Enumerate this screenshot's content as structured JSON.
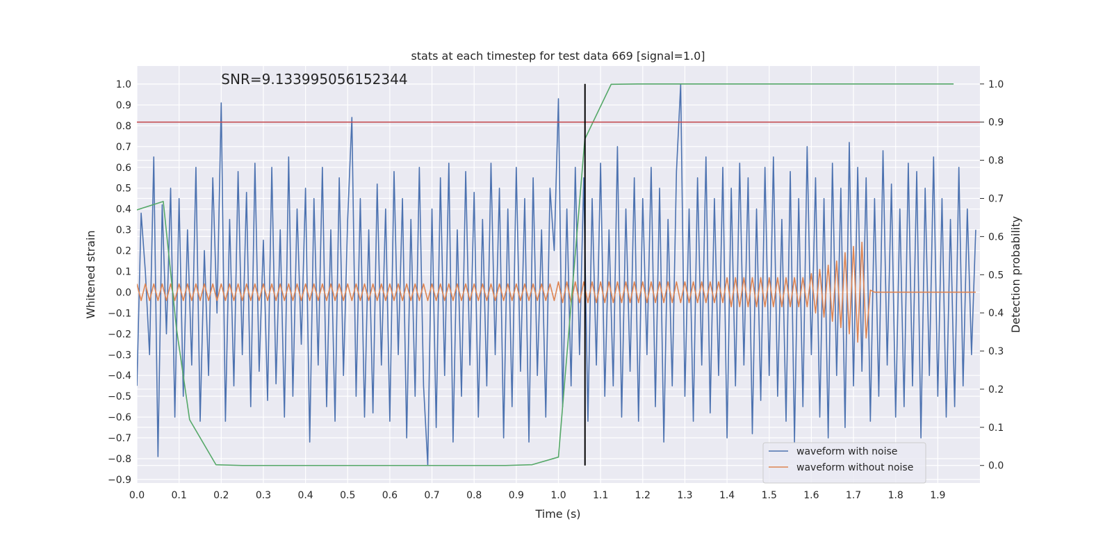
{
  "chart_data": {
    "type": "line",
    "title": "stats at each timestep for test data 669 [signal=1.0]",
    "x_label": "Time (s)",
    "y_label": "Whitened strain",
    "y2_label": "Detection probability",
    "annotation": {
      "text": "SNR=9.133995056152344",
      "x": 0.2,
      "y": 1.0
    },
    "xlim": [
      0,
      2.0
    ],
    "ylim": [
      -0.917,
      1.087
    ],
    "y2lim": [
      -0.046,
      1.047
    ],
    "grid": true,
    "legend": "lower right",
    "background": "#eaeaf2",
    "xticks": [
      {
        "value": 0,
        "label": "0.0"
      },
      {
        "value": 0.1,
        "label": "0.1"
      },
      {
        "value": 0.2,
        "label": "0.2"
      },
      {
        "value": 0.3,
        "label": "0.3"
      },
      {
        "value": 0.4,
        "label": "0.4"
      },
      {
        "value": 0.5,
        "label": "0.5"
      },
      {
        "value": 0.6,
        "label": "0.6"
      },
      {
        "value": 0.7,
        "label": "0.7"
      },
      {
        "value": 0.8,
        "label": "0.8"
      },
      {
        "value": 0.9,
        "label": "0.9"
      },
      {
        "value": 1,
        "label": "1.0"
      },
      {
        "value": 1.1,
        "label": "1.1"
      },
      {
        "value": 1.2,
        "label": "1.2"
      },
      {
        "value": 1.3,
        "label": "1.3"
      },
      {
        "value": 1.4,
        "label": "1.4"
      },
      {
        "value": 1.5,
        "label": "1.5"
      },
      {
        "value": 1.6,
        "label": "1.6"
      },
      {
        "value": 1.7,
        "label": "1.7"
      },
      {
        "value": 1.8,
        "label": "1.8"
      },
      {
        "value": 1.9,
        "label": "1.9"
      }
    ],
    "yticks": [
      {
        "value": -0.9,
        "label": "−0.9"
      },
      {
        "value": -0.8,
        "label": "−0.8"
      },
      {
        "value": -0.7,
        "label": "−0.7"
      },
      {
        "value": -0.6,
        "label": "−0.6"
      },
      {
        "value": -0.5,
        "label": "−0.5"
      },
      {
        "value": -0.4,
        "label": "−0.4"
      },
      {
        "value": -0.3,
        "label": "−0.3"
      },
      {
        "value": -0.2,
        "label": "−0.2"
      },
      {
        "value": -0.1,
        "label": "−0.1"
      },
      {
        "value": 0,
        "label": "0.0"
      },
      {
        "value": 0.1,
        "label": "0.1"
      },
      {
        "value": 0.2,
        "label": "0.2"
      },
      {
        "value": 0.3,
        "label": "0.3"
      },
      {
        "value": 0.4,
        "label": "0.4"
      },
      {
        "value": 0.5,
        "label": "0.5"
      },
      {
        "value": 0.6,
        "label": "0.6"
      },
      {
        "value": 0.7,
        "label": "0.7"
      },
      {
        "value": 0.8,
        "label": "0.8"
      },
      {
        "value": 0.9,
        "label": "0.9"
      },
      {
        "value": 1,
        "label": "1.0"
      }
    ],
    "y2ticks": [
      {
        "value": 0,
        "label": "0.0"
      },
      {
        "value": 0.1,
        "label": "0.1"
      },
      {
        "value": 0.2,
        "label": "0.2"
      },
      {
        "value": 0.3,
        "label": "0.3"
      },
      {
        "value": 0.4,
        "label": "0.4"
      },
      {
        "value": 0.5,
        "label": "0.5"
      },
      {
        "value": 0.6,
        "label": "0.6"
      },
      {
        "value": 0.7,
        "label": "0.7"
      },
      {
        "value": 0.8,
        "label": "0.8"
      },
      {
        "value": 0.9,
        "label": "0.9"
      },
      {
        "value": 1,
        "label": "1.0"
      }
    ],
    "hlines": [
      {
        "value": 0.9,
        "axis": "y2",
        "color": "#c44e52"
      }
    ],
    "vlines": [
      {
        "value": 1.063,
        "ymin": 0,
        "ymax": 1,
        "axis": "y2",
        "color": "#000000"
      }
    ],
    "x": [
      0,
      0.01,
      0.02,
      0.03,
      0.04,
      0.05,
      0.06,
      0.07,
      0.08,
      0.09,
      0.1,
      0.11,
      0.12,
      0.13,
      0.14,
      0.15,
      0.16,
      0.17,
      0.18,
      0.19,
      0.2,
      0.21,
      0.22,
      0.23,
      0.24,
      0.25,
      0.26,
      0.27,
      0.28,
      0.29,
      0.3,
      0.31,
      0.32,
      0.33,
      0.34,
      0.35,
      0.36,
      0.37,
      0.38,
      0.39,
      0.4,
      0.41,
      0.42,
      0.43,
      0.44,
      0.45,
      0.46,
      0.47,
      0.48,
      0.49,
      0.5,
      0.51,
      0.52,
      0.53,
      0.54,
      0.55,
      0.56,
      0.57,
      0.58,
      0.59,
      0.6,
      0.61,
      0.62,
      0.63,
      0.64,
      0.65,
      0.66,
      0.67,
      0.68,
      0.69,
      0.7,
      0.71,
      0.72,
      0.73,
      0.74,
      0.75,
      0.76,
      0.77,
      0.78,
      0.79,
      0.8,
      0.81,
      0.82,
      0.83,
      0.84,
      0.85,
      0.86,
      0.87,
      0.88,
      0.89,
      0.9,
      0.91,
      0.92,
      0.93,
      0.94,
      0.95,
      0.96,
      0.97,
      0.98,
      0.99,
      1,
      1.01,
      1.02,
      1.03,
      1.04,
      1.05,
      1.06,
      1.07,
      1.08,
      1.09,
      1.1,
      1.11,
      1.12,
      1.13,
      1.14,
      1.15,
      1.16,
      1.17,
      1.18,
      1.19,
      1.2,
      1.21,
      1.22,
      1.23,
      1.24,
      1.25,
      1.26,
      1.27,
      1.28,
      1.29,
      1.3,
      1.31,
      1.32,
      1.33,
      1.34,
      1.35,
      1.36,
      1.37,
      1.38,
      1.39,
      1.4,
      1.41,
      1.42,
      1.43,
      1.44,
      1.45,
      1.46,
      1.47,
      1.48,
      1.49,
      1.5,
      1.51,
      1.52,
      1.53,
      1.54,
      1.55,
      1.56,
      1.57,
      1.58,
      1.59,
      1.6,
      1.61,
      1.62,
      1.63,
      1.64,
      1.65,
      1.66,
      1.67,
      1.68,
      1.69,
      1.7,
      1.71,
      1.72,
      1.73,
      1.74,
      1.75,
      1.76,
      1.77,
      1.78,
      1.79,
      1.8,
      1.81,
      1.82,
      1.83,
      1.84,
      1.85,
      1.86,
      1.87,
      1.88,
      1.89,
      1.9,
      1.91,
      1.92,
      1.93,
      1.94,
      1.95,
      1.96,
      1.97,
      1.98,
      1.99
    ],
    "series": [
      {
        "name": "waveform with noise",
        "color": "#4c72b0",
        "values": [
          -0.45,
          0.38,
          0.1,
          -0.3,
          0.65,
          -0.79,
          0.42,
          -0.2,
          0.5,
          -0.6,
          0.45,
          -0.5,
          0.3,
          -0.35,
          0.6,
          -0.62,
          0.2,
          -0.4,
          0.55,
          -0.1,
          0.91,
          -0.62,
          0.35,
          -0.45,
          0.58,
          -0.3,
          0.48,
          -0.55,
          0.62,
          -0.38,
          0.25,
          -0.52,
          0.6,
          -0.44,
          0.3,
          -0.6,
          0.65,
          -0.5,
          0.4,
          -0.25,
          0.5,
          -0.72,
          0.45,
          -0.35,
          0.6,
          -0.55,
          0.3,
          -0.62,
          0.55,
          -0.4,
          0.35,
          0.84,
          -0.5,
          0.45,
          -0.6,
          0.3,
          -0.58,
          0.52,
          -0.35,
          0.4,
          -0.62,
          0.58,
          -0.3,
          0.45,
          -0.7,
          0.35,
          -0.5,
          0.6,
          -0.45,
          -0.83,
          0.4,
          -0.65,
          0.55,
          -0.4,
          0.62,
          -0.72,
          0.3,
          -0.5,
          0.58,
          -0.35,
          0.48,
          -0.6,
          0.35,
          -0.45,
          0.62,
          -0.3,
          0.5,
          -0.7,
          0.4,
          -0.55,
          0.6,
          -0.38,
          0.45,
          -0.72,
          0.55,
          -0.4,
          0.3,
          -0.6,
          0.5,
          0.2,
          0.93,
          -0.55,
          0.4,
          -0.45,
          0.6,
          -0.3,
          0.55,
          -0.62,
          0.45,
          -0.35,
          0.62,
          -0.5,
          0.3,
          -0.45,
          0.7,
          -0.6,
          0.4,
          -0.38,
          0.55,
          -0.62,
          0.45,
          -0.3,
          0.6,
          -0.55,
          0.5,
          -0.72,
          0.35,
          -0.45,
          0.58,
          1.0,
          -0.5,
          0.4,
          -0.62,
          0.55,
          -0.35,
          0.65,
          -0.58,
          0.45,
          -0.4,
          0.6,
          -0.7,
          0.5,
          -0.45,
          0.62,
          -0.35,
          0.55,
          -0.68,
          0.4,
          -0.52,
          0.6,
          -0.4,
          0.65,
          -0.5,
          0.35,
          -0.62,
          0.58,
          -0.72,
          0.45,
          -0.55,
          0.7,
          -0.3,
          0.55,
          -0.6,
          0.45,
          -0.7,
          0.62,
          -0.4,
          0.5,
          -0.65,
          0.72,
          -0.45,
          0.6,
          -0.38,
          0.55,
          -0.62,
          0.45,
          -0.5,
          0.68,
          -0.35,
          0.52,
          -0.6,
          0.4,
          -0.55,
          0.62,
          -0.45,
          0.58,
          -0.7,
          0.5,
          -0.4,
          0.65,
          -0.5,
          0.45,
          -0.6,
          0.35,
          -0.55,
          0.6,
          -0.45,
          0.4,
          -0.3,
          0.3
        ]
      },
      {
        "name": "waveform without noise",
        "color": "#dd8452",
        "values": [
          0.04,
          -0.04,
          0.04,
          -0.04,
          0.04,
          -0.04,
          0.04,
          -0.04,
          0.04,
          -0.04,
          0.04,
          -0.04,
          0.04,
          -0.04,
          0.04,
          -0.04,
          0.04,
          -0.04,
          0.04,
          -0.04,
          0.04,
          -0.04,
          0.04,
          -0.04,
          0.04,
          -0.04,
          0.04,
          -0.04,
          0.04,
          -0.04,
          0.04,
          -0.04,
          0.04,
          -0.04,
          0.04,
          -0.04,
          0.04,
          -0.04,
          0.04,
          -0.04,
          0.04,
          -0.04,
          0.04,
          -0.04,
          0.04,
          -0.04,
          0.04,
          -0.04,
          0.04,
          -0.04,
          0.04,
          -0.04,
          0.04,
          -0.04,
          0.04,
          -0.04,
          0.04,
          -0.04,
          0.04,
          -0.04,
          0.04,
          -0.04,
          0.04,
          -0.04,
          0.04,
          -0.04,
          0.04,
          -0.04,
          0.04,
          -0.04,
          0.04,
          -0.04,
          0.04,
          -0.04,
          0.04,
          -0.04,
          0.04,
          -0.04,
          0.04,
          -0.04,
          0.04,
          -0.04,
          0.04,
          -0.04,
          0.04,
          -0.04,
          0.04,
          -0.04,
          0.04,
          -0.04,
          0.04,
          -0.04,
          0.04,
          -0.04,
          0.04,
          -0.04,
          0.04,
          -0.04,
          0.04,
          -0.04,
          0.05,
          -0.05,
          0.05,
          -0.05,
          0.05,
          -0.05,
          0.05,
          -0.05,
          0.05,
          -0.05,
          0.05,
          -0.05,
          0.05,
          -0.05,
          0.05,
          -0.05,
          0.05,
          -0.05,
          0.05,
          -0.05,
          0.05,
          -0.05,
          0.05,
          -0.05,
          0.05,
          -0.05,
          0.05,
          -0.05,
          0.05,
          -0.05,
          0.05,
          -0.05,
          0.05,
          -0.05,
          0.05,
          -0.05,
          0.05,
          -0.05,
          0.05,
          -0.05,
          0.07,
          -0.07,
          0.07,
          -0.07,
          0.07,
          -0.07,
          0.07,
          -0.07,
          0.07,
          -0.07,
          0.07,
          -0.07,
          0.07,
          -0.07,
          0.07,
          -0.07,
          0.07,
          -0.07,
          0.07,
          -0.07,
          0.09,
          -0.1,
          0.11,
          -0.12,
          0.13,
          -0.14,
          0.15,
          -0.17,
          0.19,
          -0.2,
          0.22,
          -0.24,
          0.24,
          -0.22,
          0.01,
          0,
          0,
          0,
          0,
          0,
          0,
          0,
          0,
          0,
          0,
          0,
          0,
          0,
          0,
          0,
          0,
          0,
          0,
          0,
          0,
          0,
          0,
          0,
          0,
          0
        ]
      },
      {
        "name": null,
        "axis": "y2",
        "color": "#55a868",
        "x": [
          0,
          0.0625,
          0.09375,
          0.125,
          0.1875,
          0.25,
          0.3125,
          0.375,
          0.4375,
          0.5,
          0.5625,
          0.625,
          0.6875,
          0.75,
          0.8125,
          0.875,
          0.9375,
          1.0,
          1.0625,
          1.125,
          1.1875,
          1.25,
          1.3125,
          1.375,
          1.4375,
          1.5,
          1.5625,
          1.625,
          1.6875,
          1.75,
          1.8125,
          1.875,
          1.9375
        ],
        "values": [
          0.67,
          0.692,
          0.36,
          0.12,
          0.002,
          0.0,
          0.0,
          0.0,
          0.0,
          0.0,
          0.0,
          0.0,
          0.0,
          0.0,
          0.0,
          0.0,
          0.002,
          0.022,
          0.855,
          0.999,
          1.0,
          1.0,
          1.0,
          1.0,
          1.0,
          1.0,
          1.0,
          1.0,
          1.0,
          1.0,
          1.0,
          1.0,
          1.0
        ]
      }
    ]
  }
}
